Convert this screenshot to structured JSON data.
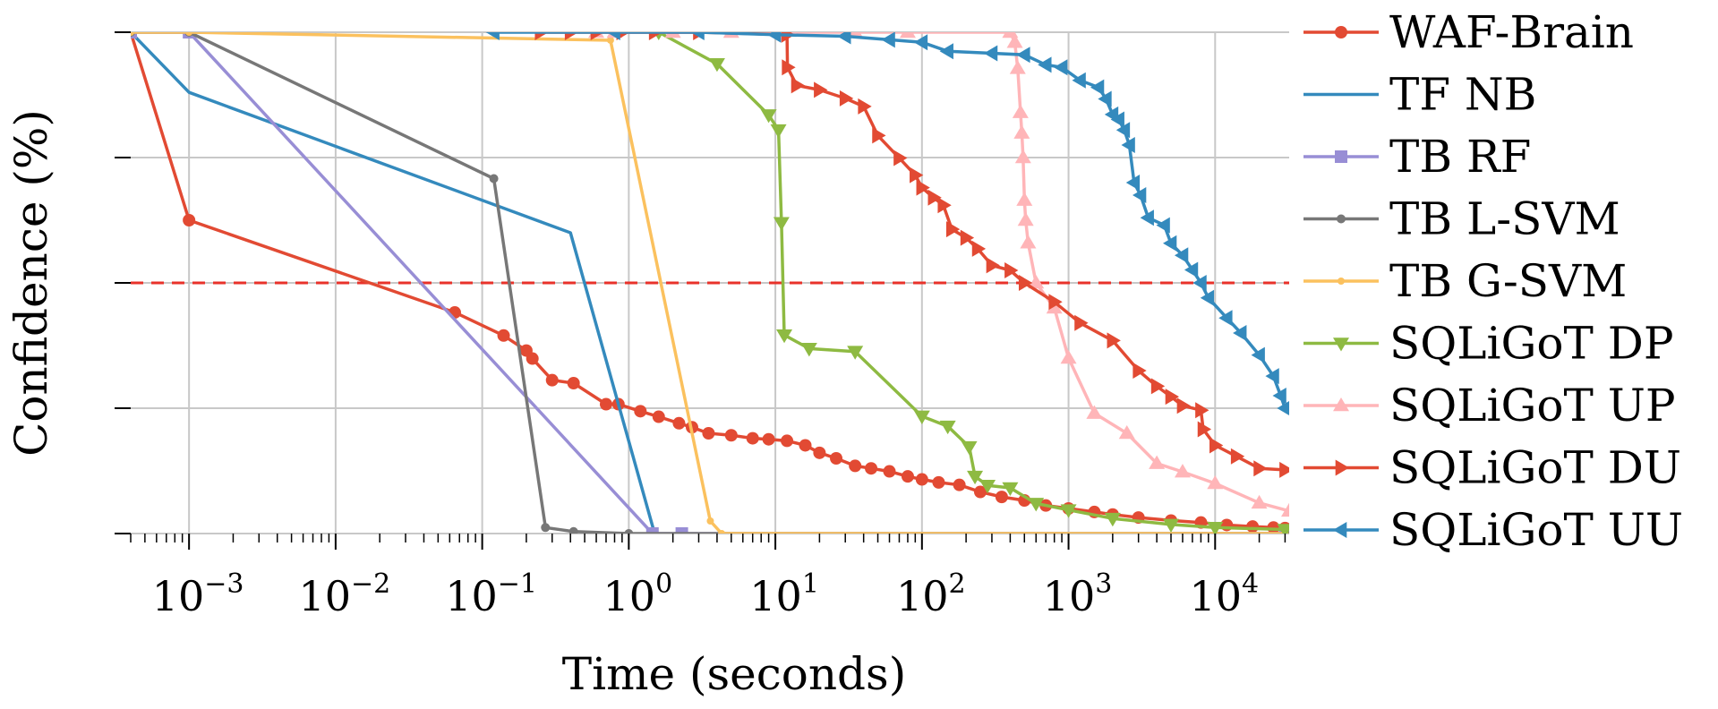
{
  "chart_data": {
    "type": "line",
    "xscale": "log",
    "xlabel": "Time (seconds)",
    "ylabel": "Confidence (%)",
    "xlim": [
      0.0004,
      32000
    ],
    "ylim": [
      0,
      100
    ],
    "grid": true,
    "legend_position": "right",
    "xtick_labels": [
      {
        "value": 0.001,
        "base": "10",
        "exp": "−3"
      },
      {
        "value": 0.01,
        "base": "10",
        "exp": "−2"
      },
      {
        "value": 0.1,
        "base": "10",
        "exp": "−1"
      },
      {
        "value": 1,
        "base": "10",
        "exp": "0"
      },
      {
        "value": 10,
        "base": "10",
        "exp": "1"
      },
      {
        "value": 100,
        "base": "10",
        "exp": "2"
      },
      {
        "value": 1000,
        "base": "10",
        "exp": "3"
      },
      {
        "value": 10000,
        "base": "10",
        "exp": "4"
      }
    ],
    "yticks": [
      0,
      25,
      50,
      75,
      100
    ],
    "threshold": {
      "value": 50,
      "color": "#e8322a",
      "style": "dashed"
    },
    "series": [
      {
        "name": "WAF-Brain",
        "color": "#e24a33",
        "marker": "circle",
        "points": [
          [
            0.0004,
            100
          ],
          [
            0.001,
            62.5
          ],
          [
            0.065,
            44.1
          ],
          [
            0.14,
            39.5
          ],
          [
            0.2,
            36.5
          ],
          [
            0.22,
            34.9
          ],
          [
            0.3,
            30.6
          ],
          [
            0.42,
            30
          ],
          [
            0.7,
            25.8
          ],
          [
            0.85,
            25.8
          ],
          [
            1.2,
            24.4
          ],
          [
            1.6,
            23.3
          ],
          [
            2.2,
            22
          ],
          [
            2.7,
            21.2
          ],
          [
            3.5,
            20
          ],
          [
            5,
            19.6
          ],
          [
            7,
            19
          ],
          [
            9,
            18.8
          ],
          [
            12,
            18.5
          ],
          [
            16,
            17.6
          ],
          [
            20,
            16.1
          ],
          [
            26,
            15
          ],
          [
            35,
            13.5
          ],
          [
            45,
            13
          ],
          [
            60,
            12.4
          ],
          [
            80,
            11.4
          ],
          [
            100,
            10.8
          ],
          [
            130,
            10.2
          ],
          [
            180,
            9.7
          ],
          [
            250,
            8.3
          ],
          [
            350,
            7.3
          ],
          [
            500,
            6.6
          ],
          [
            700,
            5.6
          ],
          [
            1000,
            5
          ],
          [
            1500,
            4.3
          ],
          [
            2000,
            3.8
          ],
          [
            3000,
            3.2
          ],
          [
            5000,
            2.6
          ],
          [
            8000,
            2.2
          ],
          [
            12000,
            1.7
          ],
          [
            18000,
            1.4
          ],
          [
            25000,
            1.2
          ],
          [
            30000,
            1.1
          ]
        ]
      },
      {
        "name": "TF NB",
        "color": "#348abd",
        "marker": "none",
        "points": [
          [
            0.0004,
            100
          ],
          [
            0.001,
            88
          ],
          [
            0.4,
            60
          ],
          [
            1.5,
            0
          ]
        ]
      },
      {
        "name": "TB RF",
        "color": "#988ed5",
        "marker": "square",
        "points": [
          [
            0.0004,
            100
          ],
          [
            0.001,
            100
          ],
          [
            1.45,
            0
          ],
          [
            2.3,
            0
          ],
          [
            30000,
            0
          ]
        ]
      },
      {
        "name": "TB L-SVM",
        "color": "#777777",
        "marker": "circle-small",
        "points": [
          [
            0.0004,
            100
          ],
          [
            0.001,
            100
          ],
          [
            0.12,
            70.8
          ],
          [
            0.27,
            1.2
          ],
          [
            0.42,
            0.4
          ],
          [
            1.0,
            0
          ],
          [
            30000,
            0
          ]
        ]
      },
      {
        "name": "TB G-SVM",
        "color": "#fbc15e",
        "marker": "star",
        "points": [
          [
            0.0004,
            100
          ],
          [
            0.001,
            100
          ],
          [
            0.75,
            98.4
          ],
          [
            3.6,
            2.5
          ],
          [
            4.3,
            0
          ],
          [
            30000,
            0
          ]
        ]
      },
      {
        "name": "SQLiGoT DP",
        "color": "#8eba42",
        "marker": "triangle-down",
        "points": [
          [
            1.6,
            100
          ],
          [
            4,
            93.7
          ],
          [
            9,
            83.5
          ],
          [
            10.5,
            80.5
          ],
          [
            11,
            62
          ],
          [
            11.5,
            39.6
          ],
          [
            17,
            36.9
          ],
          [
            35,
            36.3
          ],
          [
            100,
            23.4
          ],
          [
            150,
            21.4
          ],
          [
            210,
            17.3
          ],
          [
            230,
            11.4
          ],
          [
            280,
            9.6
          ],
          [
            400,
            9.1
          ],
          [
            600,
            6
          ],
          [
            1000,
            4.7
          ],
          [
            2000,
            3
          ],
          [
            5000,
            1.8
          ],
          [
            10000,
            1.2
          ],
          [
            30000,
            0.8
          ]
        ]
      },
      {
        "name": "SQLiGoT UP",
        "color": "#ffb5b8",
        "marker": "triangle-up",
        "points": [
          [
            0.6,
            100
          ],
          [
            0.8,
            100
          ],
          [
            2,
            100
          ],
          [
            5,
            100
          ],
          [
            35,
            100
          ],
          [
            80,
            100
          ],
          [
            400,
            100
          ],
          [
            430,
            98
          ],
          [
            450,
            92.8
          ],
          [
            470,
            84
          ],
          [
            480,
            79.9
          ],
          [
            490,
            75
          ],
          [
            500,
            66.5
          ],
          [
            510,
            62.5
          ],
          [
            530,
            58
          ],
          [
            600,
            50
          ],
          [
            800,
            45
          ],
          [
            1000,
            35
          ],
          [
            1500,
            24
          ],
          [
            2500,
            20
          ],
          [
            4000,
            14
          ],
          [
            6000,
            12.3
          ],
          [
            10000,
            10
          ],
          [
            20000,
            6.1
          ],
          [
            32000,
            4.5
          ]
        ]
      },
      {
        "name": "SQLiGoT DU",
        "color": "#e24a33",
        "marker": "triangle-right",
        "points": [
          [
            0.25,
            100
          ],
          [
            0.4,
            100
          ],
          [
            0.6,
            100
          ],
          [
            0.9,
            100
          ],
          [
            1.5,
            100
          ],
          [
            3,
            100
          ],
          [
            12,
            99.5
          ],
          [
            12.1,
            93
          ],
          [
            14,
            89.4
          ],
          [
            20,
            88.5
          ],
          [
            30,
            86.8
          ],
          [
            40,
            85.2
          ],
          [
            50,
            79.4
          ],
          [
            70,
            74.9
          ],
          [
            90,
            71.5
          ],
          [
            100,
            69
          ],
          [
            120,
            67
          ],
          [
            140,
            65.5
          ],
          [
            160,
            60.7
          ],
          [
            200,
            59
          ],
          [
            240,
            56.8
          ],
          [
            300,
            53.5
          ],
          [
            400,
            52.5
          ],
          [
            500,
            50
          ],
          [
            800,
            46.2
          ],
          [
            1200,
            42
          ],
          [
            2000,
            38.5
          ],
          [
            3000,
            32.5
          ],
          [
            4000,
            29.4
          ],
          [
            5000,
            27.3
          ],
          [
            6000,
            25.5
          ],
          [
            8000,
            24.6
          ],
          [
            8300,
            20.8
          ],
          [
            10000,
            17.6
          ],
          [
            14000,
            15.4
          ],
          [
            20000,
            13
          ],
          [
            30000,
            12.7
          ]
        ]
      },
      {
        "name": "SQLiGoT UU",
        "color": "#348abd",
        "marker": "triangle-left",
        "points": [
          [
            0.12,
            100
          ],
          [
            0.8,
            100
          ],
          [
            3,
            100
          ],
          [
            10,
            99.5
          ],
          [
            30,
            99.2
          ],
          [
            60,
            98.5
          ],
          [
            100,
            98
          ],
          [
            150,
            96.2
          ],
          [
            300,
            95.8
          ],
          [
            500,
            95.5
          ],
          [
            700,
            93.5
          ],
          [
            900,
            93
          ],
          [
            1200,
            90.4
          ],
          [
            1600,
            89
          ],
          [
            1800,
            86.7
          ],
          [
            2000,
            83.6
          ],
          [
            2200,
            82.6
          ],
          [
            2400,
            80.5
          ],
          [
            2600,
            77.5
          ],
          [
            2800,
            70
          ],
          [
            3100,
            67.5
          ],
          [
            3500,
            63
          ],
          [
            4500,
            61.5
          ],
          [
            5000,
            57.9
          ],
          [
            6000,
            55.5
          ],
          [
            7000,
            52.6
          ],
          [
            8000,
            50
          ],
          [
            9000,
            47
          ],
          [
            12000,
            43
          ],
          [
            15000,
            40
          ],
          [
            20000,
            35.6
          ],
          [
            25000,
            31.4
          ],
          [
            28000,
            27.5
          ],
          [
            30000,
            25
          ]
        ]
      }
    ]
  }
}
